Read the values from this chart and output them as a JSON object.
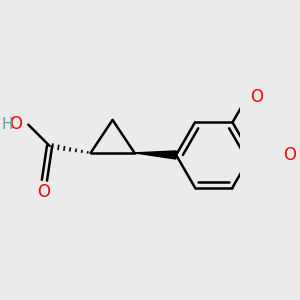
{
  "background_color": "#ebebeb",
  "bond_color": "#000000",
  "oxygen_color": "#ff0000",
  "hydrogen_color": "#5f9ea0",
  "line_width": 1.8,
  "figsize": [
    3.0,
    3.0
  ],
  "dpi": 100,
  "xlim": [
    -1.6,
    2.2
  ],
  "ylim": [
    -1.4,
    1.4
  ]
}
